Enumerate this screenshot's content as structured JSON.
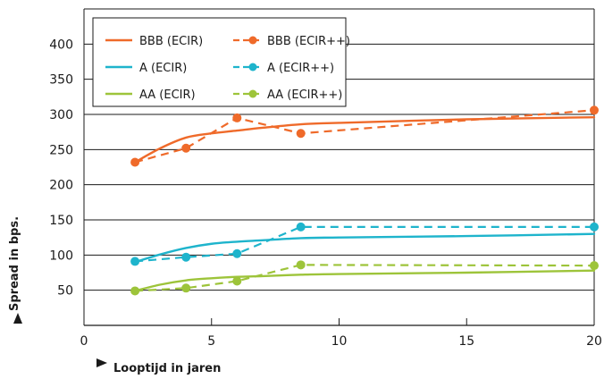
{
  "chart_data": {
    "type": "line",
    "xlabel": "Looptijd in jaren",
    "ylabel": "Spread in bps.",
    "xlim": [
      0,
      20
    ],
    "ylim": [
      0,
      450
    ],
    "x_ticks": [
      0,
      5,
      10,
      15,
      20
    ],
    "y_ticks": [
      50,
      100,
      150,
      200,
      250,
      300,
      350,
      400
    ],
    "grid": "horizontal",
    "legend_position": "top-left",
    "series": [
      {
        "name": "BBB (ECIR)",
        "style": "solid",
        "color": "#ef6a2a",
        "x": [
          2,
          3,
          4,
          5,
          6,
          7,
          8.5,
          10,
          15,
          20
        ],
        "y": [
          232,
          252,
          267,
          273,
          277,
          281,
          286,
          288,
          293,
          296
        ]
      },
      {
        "name": "BBB (ECIR++)",
        "style": "dashed",
        "color": "#ef6a2a",
        "x": [
          2,
          4,
          6,
          8.5,
          20
        ],
        "y": [
          232,
          252,
          295,
          273,
          306
        ]
      },
      {
        "name": "A (ECIR)",
        "style": "solid",
        "color": "#1eb4cc",
        "x": [
          2,
          3,
          4,
          5,
          6,
          7,
          8.5,
          10,
          15,
          20
        ],
        "y": [
          90,
          101,
          110,
          116,
          119,
          121,
          124,
          125,
          127,
          130
        ]
      },
      {
        "name": "A (ECIR++)",
        "style": "dashed",
        "color": "#1eb4cc",
        "x": [
          2,
          4,
          6,
          8.5,
          20
        ],
        "y": [
          91,
          97,
          102,
          140,
          140
        ]
      },
      {
        "name": "AA (ECIR)",
        "style": "solid",
        "color": "#9dc43a",
        "x": [
          2,
          3,
          4,
          5,
          6,
          7,
          8.5,
          10,
          15,
          20
        ],
        "y": [
          49,
          58,
          64,
          67,
          69,
          70,
          72,
          73,
          75,
          78
        ]
      },
      {
        "name": "AA (ECIR++)",
        "style": "dashed",
        "color": "#9dc43a",
        "x": [
          2,
          4,
          6,
          8.5,
          20
        ],
        "y": [
          49,
          53,
          63,
          86,
          85
        ]
      }
    ]
  }
}
